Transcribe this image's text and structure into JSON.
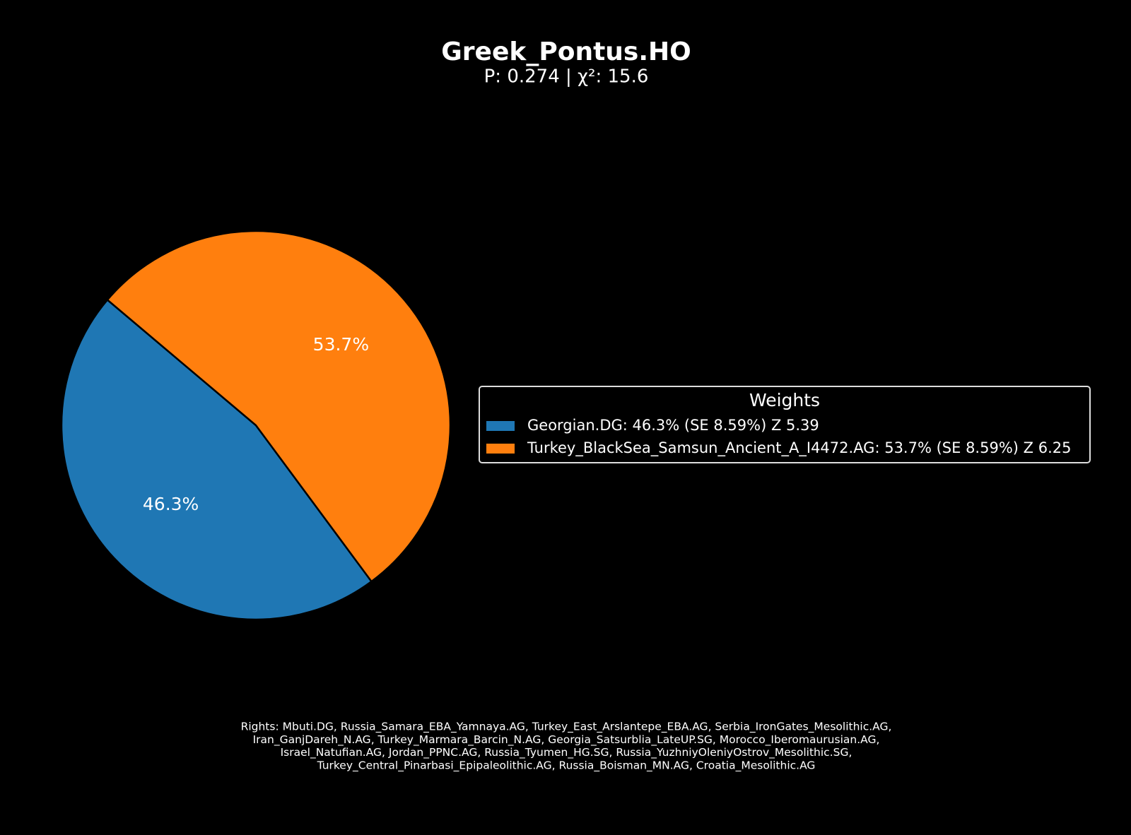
{
  "chart_data": {
    "type": "pie",
    "title": "Greek_Pontus.HO",
    "subtitle": "P: 0.274 | χ²: 15.6",
    "legend_title": "Weights",
    "categories": [
      "Georgian.DG: 46.3% (SE 8.59%) Z 5.39",
      "Turkey_BlackSea_Samsun_Ancient_A_I4472.AG: 53.7% (SE 8.59%) Z 6.25"
    ],
    "values": [
      46.3,
      53.7
    ],
    "value_labels": [
      "46.3%",
      "53.7%"
    ],
    "colors": [
      "#1f77b4",
      "#ff7f0e"
    ],
    "legend": "right",
    "footnote": [
      "Rights: Mbuti.DG, Russia_Samara_EBA_Yamnaya.AG, Turkey_East_Arslantepe_EBA.AG, Serbia_IronGates_Mesolithic.AG,",
      "Iran_GanjDareh_N.AG, Turkey_Marmara_Barcin_N.AG, Georgia_Satsurblia_LateUP.SG, Morocco_Iberomaurusian.AG,",
      "Israel_Natufian.AG, Jordan_PPNC.AG, Russia_Tyumen_HG.SG, Russia_YuzhniyOleniyOstrov_Mesolithic.SG,",
      "Turkey_Central_Pinarbasi_Epipaleolithic.AG, Russia_Boisman_MN.AG, Croatia_Mesolithic.AG"
    ]
  }
}
